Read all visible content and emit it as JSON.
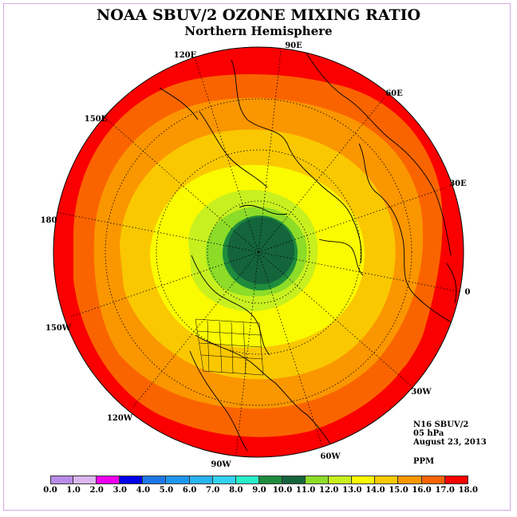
{
  "title": "NOAA SBUV/2 OZONE MIXING RATIO",
  "subtitle": "Northern Hemisphere",
  "info": {
    "satellite": "N16 SBUV/2",
    "level": "05 hPa",
    "date": "August 23, 2013",
    "units": "PPM"
  },
  "longitude_labels": [
    "90E",
    "60E",
    "30E",
    "0",
    "30W",
    "60W",
    "90W",
    "120W",
    "150W",
    "180",
    "150E",
    "120E"
  ],
  "colorbar": {
    "ticks": [
      "0.0",
      "1.0",
      "2.0",
      "3.0",
      "4.0",
      "5.0",
      "6.0",
      "7.0",
      "8.0",
      "9.0",
      "10.0",
      "11.0",
      "12.0",
      "13.0",
      "14.0",
      "15.0",
      "16.0",
      "17.0",
      "18.0"
    ],
    "colors": [
      "#b98ce6",
      "#dcb6ee",
      "#ee00ee",
      "#0000e6",
      "#1e78e6",
      "#1e96f0",
      "#28b4f0",
      "#32d2f0",
      "#28f0c8",
      "#1e8c3c",
      "#14643c",
      "#8cdc28",
      "#c8f01e",
      "#fafa00",
      "#fac800",
      "#fa9600",
      "#fa6400",
      "#fa0000",
      "#8c5a3c"
    ]
  },
  "map_colors": {
    "red": "#fa0000",
    "orange_red": "#fa6400",
    "orange": "#fa9600",
    "amber": "#fac800",
    "yellow": "#fafa00",
    "yellow_green": "#c8f01e",
    "light_green": "#8cdc28",
    "dark_green": "#14643c",
    "mid_green": "#1e8c3c"
  }
}
